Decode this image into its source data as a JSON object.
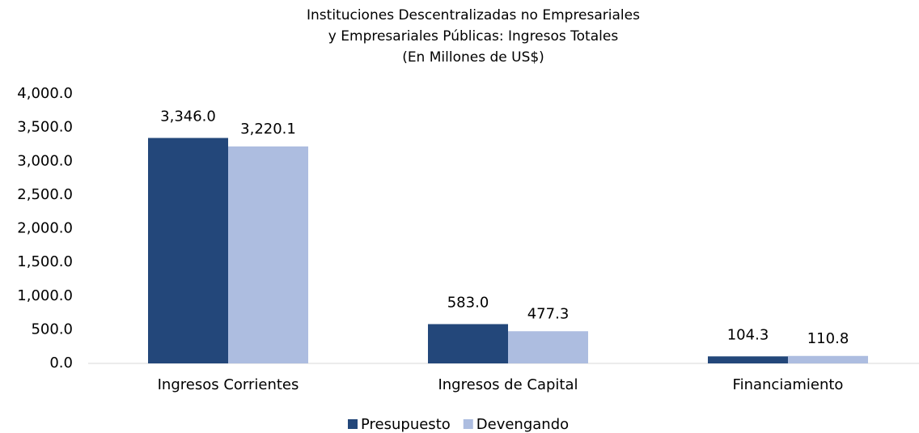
{
  "chart_data": {
    "type": "bar",
    "title": [
      "Instituciones Descentralizadas no Empresariales",
      "y Empresariales Públicas: Ingresos Totales",
      "(En Millones de US$)"
    ],
    "categories": [
      "Ingresos Corrientes",
      "Ingresos de Capital",
      "Financiamiento"
    ],
    "series": [
      {
        "name": "Presupuesto",
        "color": "#23477a",
        "values": [
          3346.0,
          583.0,
          104.3
        ],
        "value_labels": [
          "3,346.0",
          "583.0",
          "104.3"
        ]
      },
      {
        "name": "Devengando",
        "color": "#adbde0",
        "values": [
          3220.1,
          477.3,
          110.8
        ],
        "value_labels": [
          "3,220.1",
          "477.3",
          "110.8"
        ]
      }
    ],
    "ylim": [
      0,
      4000
    ],
    "yticks": [
      {
        "value": 0,
        "label": "0.0"
      },
      {
        "value": 500,
        "label": "500.0"
      },
      {
        "value": 1000,
        "label": "1,000.0"
      },
      {
        "value": 1500,
        "label": "1,500.0"
      },
      {
        "value": 2000,
        "label": "2,000.0"
      },
      {
        "value": 2500,
        "label": "2,500.0"
      },
      {
        "value": 3000,
        "label": "3,000.0"
      },
      {
        "value": 3500,
        "label": "3,500.0"
      },
      {
        "value": 4000,
        "label": "4,000.0"
      }
    ],
    "grid": false,
    "legend": "bottom"
  }
}
